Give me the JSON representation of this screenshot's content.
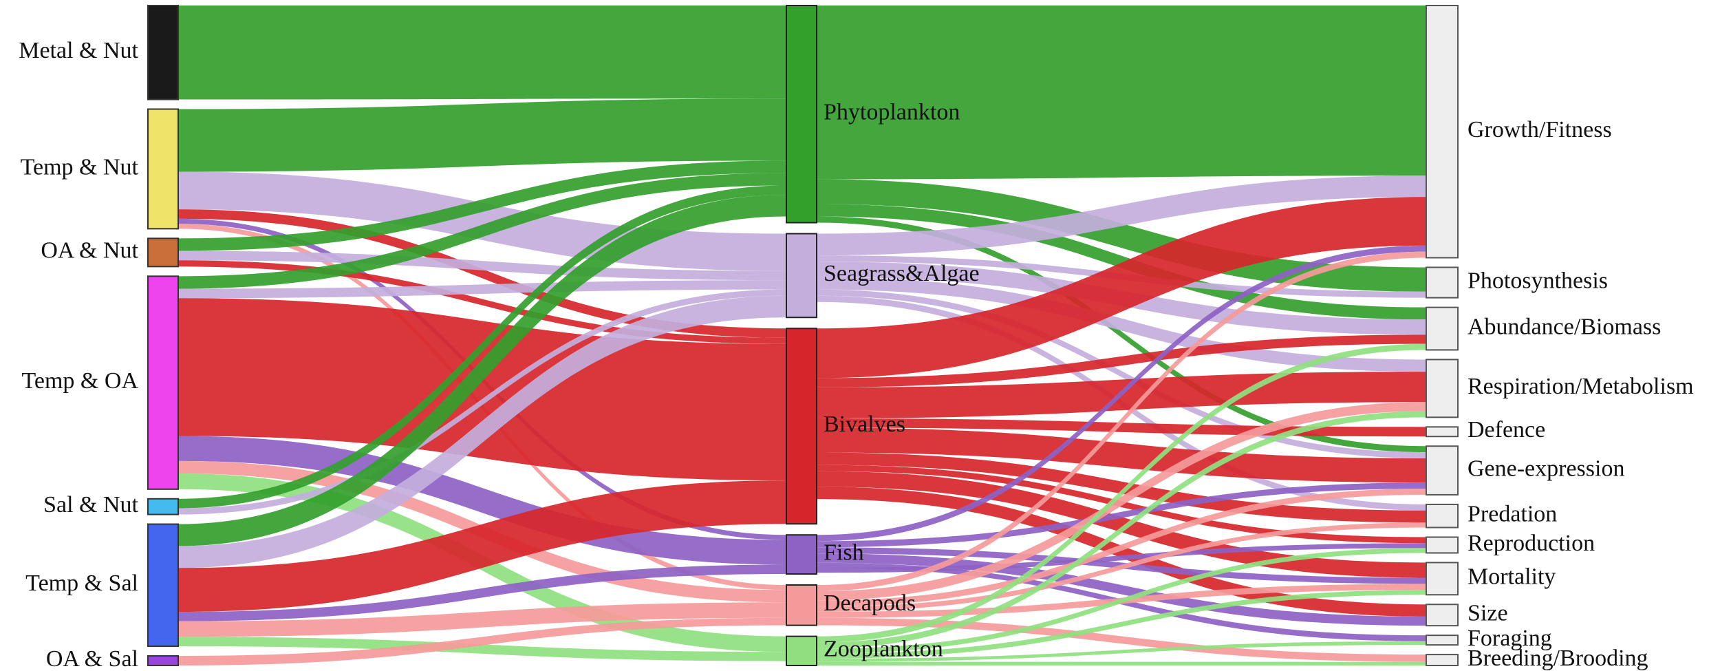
{
  "colors": {
    "green": "#33a02c",
    "lilac": "#c3aedc",
    "red": "#d7262b",
    "purple": "#8d62c4",
    "pink": "#f59a9a",
    "lightgreen": "#8fdf80"
  },
  "sources": [
    {
      "id": "metal_nut",
      "label": "Metal & Nut",
      "color": "#1a1a1a"
    },
    {
      "id": "temp_nut",
      "label": "Temp & Nut",
      "color": "#f0e36a"
    },
    {
      "id": "oa_nut",
      "label": "OA & Nut",
      "color": "#c9703a"
    },
    {
      "id": "temp_oa",
      "label": "Temp & OA",
      "color": "#ee44ee"
    },
    {
      "id": "sal_nut",
      "label": "Sal & Nut",
      "color": "#44bbee"
    },
    {
      "id": "temp_sal",
      "label": "Temp & Sal",
      "color": "#4466ee"
    },
    {
      "id": "oa_sal",
      "label": "OA & Sal",
      "color": "#9944dd"
    }
  ],
  "taxa": [
    {
      "id": "phyto",
      "label": "Phytoplankton",
      "color": "#33a02c"
    },
    {
      "id": "seagrass",
      "label": "Seagrass&Algae",
      "color": "#c3aedc"
    },
    {
      "id": "bivalves",
      "label": "Bivalves",
      "color": "#d7262b"
    },
    {
      "id": "fish",
      "label": "Fish",
      "color": "#8d62c4"
    },
    {
      "id": "decapods",
      "label": "Decapods",
      "color": "#f59a9a"
    },
    {
      "id": "zoo",
      "label": "Zooplankton",
      "color": "#8fdf80"
    }
  ],
  "responses": [
    {
      "id": "growth",
      "label": "Growth/Fitness"
    },
    {
      "id": "photo",
      "label": "Photosynthesis"
    },
    {
      "id": "abund",
      "label": "Abundance/Biomass"
    },
    {
      "id": "resp",
      "label": "Respiration/Metabolism"
    },
    {
      "id": "defence",
      "label": "Defence"
    },
    {
      "id": "gene",
      "label": "Gene-expression"
    },
    {
      "id": "predation",
      "label": "Predation"
    },
    {
      "id": "repro",
      "label": "Reproduction"
    },
    {
      "id": "mortality",
      "label": "Mortality"
    },
    {
      "id": "size",
      "label": "Size"
    },
    {
      "id": "foraging",
      "label": "Foraging"
    },
    {
      "id": "breeding",
      "label": "Breeding/Brooding"
    }
  ],
  "left_links": [
    {
      "from": "metal_nut",
      "to": "phyto",
      "value": 15
    },
    {
      "from": "temp_nut",
      "to": "phyto",
      "value": 10
    },
    {
      "from": "temp_nut",
      "to": "seagrass",
      "value": 6
    },
    {
      "from": "temp_nut",
      "to": "bivalves",
      "value": 1.5
    },
    {
      "from": "temp_nut",
      "to": "fish",
      "value": 0.8
    },
    {
      "from": "temp_nut",
      "to": "decapods",
      "value": 0.8
    },
    {
      "from": "oa_nut",
      "to": "phyto",
      "value": 2
    },
    {
      "from": "oa_nut",
      "to": "seagrass",
      "value": 1.5
    },
    {
      "from": "oa_nut",
      "to": "bivalves",
      "value": 1
    },
    {
      "from": "temp_oa",
      "to": "phyto",
      "value": 2
    },
    {
      "from": "temp_oa",
      "to": "seagrass",
      "value": 1.5
    },
    {
      "from": "temp_oa",
      "to": "bivalves",
      "value": 22
    },
    {
      "from": "temp_oa",
      "to": "fish",
      "value": 4
    },
    {
      "from": "temp_oa",
      "to": "decapods",
      "value": 2
    },
    {
      "from": "temp_oa",
      "to": "zoo",
      "value": 2.5
    },
    {
      "from": "sal_nut",
      "to": "phyto",
      "value": 1.5
    },
    {
      "from": "sal_nut",
      "to": "seagrass",
      "value": 1
    },
    {
      "from": "temp_sal",
      "to": "phyto",
      "value": 3.5
    },
    {
      "from": "temp_sal",
      "to": "seagrass",
      "value": 3.5
    },
    {
      "from": "temp_sal",
      "to": "bivalves",
      "value": 7
    },
    {
      "from": "temp_sal",
      "to": "fish",
      "value": 1.5
    },
    {
      "from": "temp_sal",
      "to": "decapods",
      "value": 2.5
    },
    {
      "from": "temp_sal",
      "to": "zoo",
      "value": 1.5
    },
    {
      "from": "oa_sal",
      "to": "decapods",
      "value": 1.2
    }
  ],
  "right_links": [
    {
      "from": "phyto",
      "to": "growth",
      "value": 28
    },
    {
      "from": "phyto",
      "to": "photo",
      "value": 4
    },
    {
      "from": "phyto",
      "to": "abund",
      "value": 2
    },
    {
      "from": "phyto",
      "to": "gene",
      "value": 1
    },
    {
      "from": "seagrass",
      "to": "growth",
      "value": 3.5
    },
    {
      "from": "seagrass",
      "to": "photo",
      "value": 1
    },
    {
      "from": "seagrass",
      "to": "abund",
      "value": 2.5
    },
    {
      "from": "seagrass",
      "to": "resp",
      "value": 2
    },
    {
      "from": "seagrass",
      "to": "gene",
      "value": 1
    },
    {
      "from": "seagrass",
      "to": "predation",
      "value": 1
    },
    {
      "from": "bivalves",
      "to": "growth",
      "value": 8
    },
    {
      "from": "bivalves",
      "to": "abund",
      "value": 1.5
    },
    {
      "from": "bivalves",
      "to": "resp",
      "value": 5
    },
    {
      "from": "bivalves",
      "to": "defence",
      "value": 1.5
    },
    {
      "from": "bivalves",
      "to": "gene",
      "value": 4
    },
    {
      "from": "bivalves",
      "to": "predation",
      "value": 2
    },
    {
      "from": "bivalves",
      "to": "repro",
      "value": 1
    },
    {
      "from": "bivalves",
      "to": "mortality",
      "value": 2.5
    },
    {
      "from": "bivalves",
      "to": "size",
      "value": 2
    },
    {
      "from": "fish",
      "to": "growth",
      "value": 1
    },
    {
      "from": "fish",
      "to": "gene",
      "value": 1
    },
    {
      "from": "fish",
      "to": "mortality",
      "value": 1
    },
    {
      "from": "fish",
      "to": "size",
      "value": 1.5
    },
    {
      "from": "fish",
      "to": "foraging",
      "value": 0.8
    },
    {
      "from": "fish",
      "to": "repro",
      "value": 0.8
    },
    {
      "from": "decapods",
      "to": "growth",
      "value": 1
    },
    {
      "from": "decapods",
      "to": "resp",
      "value": 1.5
    },
    {
      "from": "decapods",
      "to": "gene",
      "value": 1
    },
    {
      "from": "decapods",
      "to": "predation",
      "value": 0.8
    },
    {
      "from": "decapods",
      "to": "mortality",
      "value": 1
    },
    {
      "from": "decapods",
      "to": "breeding",
      "value": 1.2
    },
    {
      "from": "zoo",
      "to": "abund",
      "value": 1
    },
    {
      "from": "zoo",
      "to": "resp",
      "value": 1
    },
    {
      "from": "zoo",
      "to": "repro",
      "value": 0.8
    },
    {
      "from": "zoo",
      "to": "mortality",
      "value": 0.8
    },
    {
      "from": "zoo",
      "to": "foraging",
      "value": 0.5
    },
    {
      "from": "zoo",
      "to": "breeding",
      "value": 0.6
    }
  ]
}
